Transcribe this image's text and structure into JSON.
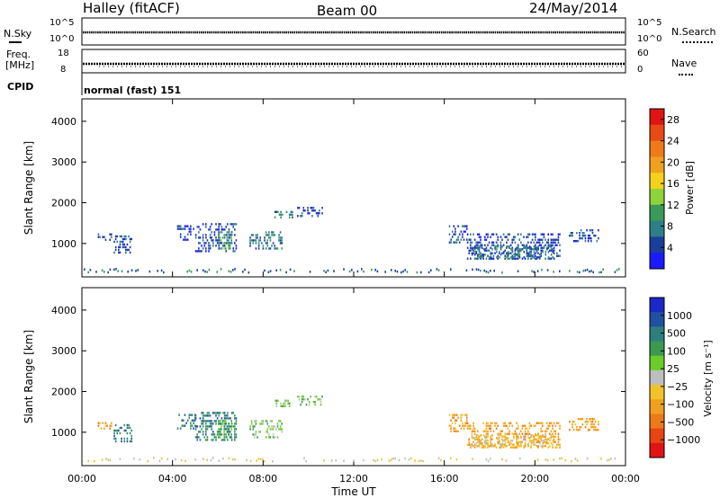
{
  "header": {
    "station": "Halley (fitACF)",
    "beam": "Beam 00",
    "date": "24/May/2014"
  },
  "top_panels": {
    "nsky": {
      "label": "N.Sky",
      "tick_top": "10^5",
      "tick_bottom": "10^0"
    },
    "nsearch": {
      "label": "N.Search",
      "tick_top": "10^5",
      "tick_bottom": "10^0"
    },
    "freq": {
      "label_line1": "Freq.",
      "label_line2": "[MHz]",
      "tick_top": "18",
      "tick_bottom": "8"
    },
    "nave": {
      "label": "Nave",
      "tick_top": "60",
      "tick_bottom": "0"
    },
    "cpid": {
      "label": "CPID",
      "value": "normal (fast) 151"
    }
  },
  "chart_data": [
    {
      "type": "heatmap",
      "name": "power",
      "ylabel": "Slant Range [km]",
      "ylim": [
        180,
        4550
      ],
      "yticks": [
        "1000",
        "2000",
        "3000",
        "4000"
      ],
      "colorbar": {
        "label": "Power [dB]",
        "ticks": [
          "4",
          "8",
          "12",
          "16",
          "20",
          "24",
          "28"
        ],
        "colors": [
          "#1a1aff",
          "#1a3e9c",
          "#2e7e8a",
          "#3a9a5a",
          "#8fd23a",
          "#f2d21a",
          "#f0a020",
          "#ef7a18",
          "#e84a14",
          "#e01414"
        ]
      },
      "patches": [
        {
          "t0": 0.7,
          "t1": 1.3,
          "r0": 1100,
          "r1": 1250,
          "level": 1
        },
        {
          "t0": 1.4,
          "t1": 2.2,
          "r0": 800,
          "r1": 1200,
          "level": 1
        },
        {
          "t0": 4.2,
          "t1": 5.0,
          "r0": 1100,
          "r1": 1450,
          "level": 1
        },
        {
          "t0": 5.0,
          "t1": 6.8,
          "r0": 800,
          "r1": 1500,
          "level": 1
        },
        {
          "t0": 6.0,
          "t1": 6.6,
          "r0": 850,
          "r1": 1300,
          "level": 3
        },
        {
          "t0": 7.4,
          "t1": 8.8,
          "r0": 850,
          "r1": 1300,
          "level": 2
        },
        {
          "t0": 8.5,
          "t1": 9.3,
          "r0": 1650,
          "r1": 1800,
          "level": 2
        },
        {
          "t0": 9.5,
          "t1": 10.6,
          "r0": 1650,
          "r1": 1900,
          "level": 1
        },
        {
          "t0": 16.2,
          "t1": 17.0,
          "r0": 1000,
          "r1": 1450,
          "level": 1
        },
        {
          "t0": 17.0,
          "t1": 21.1,
          "r0": 600,
          "r1": 1250,
          "level": 1
        },
        {
          "t0": 17.2,
          "t1": 20.8,
          "r0": 650,
          "r1": 950,
          "level": 2
        },
        {
          "t0": 21.5,
          "t1": 22.8,
          "r0": 1050,
          "r1": 1350,
          "level": 1
        }
      ]
    },
    {
      "type": "heatmap",
      "name": "velocity",
      "ylabel": "Slant Range [km]",
      "xlabel": "Time UT",
      "ylim": [
        180,
        4550
      ],
      "yticks": [
        "1000",
        "2000",
        "3000",
        "4000"
      ],
      "xticks": [
        "00:00",
        "04:00",
        "08:00",
        "12:00",
        "16:00",
        "20:00",
        "00:00"
      ],
      "colorbar": {
        "label": "Velocity [m s⁻¹]",
        "ticks": [
          "1000",
          "500",
          "100",
          "25",
          "−25",
          "−100",
          "−500",
          "−1000"
        ],
        "colors": [
          "#1c28c8",
          "#2050a0",
          "#2e7e7e",
          "#3a9a50",
          "#6ccc2a",
          "#bebebe",
          "#f2c22a",
          "#f0a020",
          "#ec7a18",
          "#e84414",
          "#e01414"
        ]
      },
      "patches": [
        {
          "t0": 0.7,
          "t1": 1.3,
          "r0": 1100,
          "r1": 1250,
          "level": 7
        },
        {
          "t0": 1.4,
          "t1": 2.2,
          "r0": 800,
          "r1": 1200,
          "level": 2
        },
        {
          "t0": 4.2,
          "t1": 5.0,
          "r0": 1100,
          "r1": 1450,
          "level": 2
        },
        {
          "t0": 5.0,
          "t1": 6.8,
          "r0": 800,
          "r1": 1500,
          "level": 2
        },
        {
          "t0": 6.0,
          "t1": 6.6,
          "r0": 850,
          "r1": 1300,
          "level": 3
        },
        {
          "t0": 7.4,
          "t1": 8.8,
          "r0": 850,
          "r1": 1300,
          "level": 4
        },
        {
          "t0": 8.5,
          "t1": 9.3,
          "r0": 1650,
          "r1": 1800,
          "level": 4
        },
        {
          "t0": 9.5,
          "t1": 10.6,
          "r0": 1650,
          "r1": 1900,
          "level": 4
        },
        {
          "t0": 16.2,
          "t1": 17.0,
          "r0": 1000,
          "r1": 1450,
          "level": 7
        },
        {
          "t0": 17.0,
          "t1": 21.1,
          "r0": 600,
          "r1": 1250,
          "level": 7
        },
        {
          "t0": 17.2,
          "t1": 20.8,
          "r0": 650,
          "r1": 950,
          "level": 6
        },
        {
          "t0": 21.5,
          "t1": 22.8,
          "r0": 1050,
          "r1": 1350,
          "level": 7
        }
      ]
    }
  ]
}
